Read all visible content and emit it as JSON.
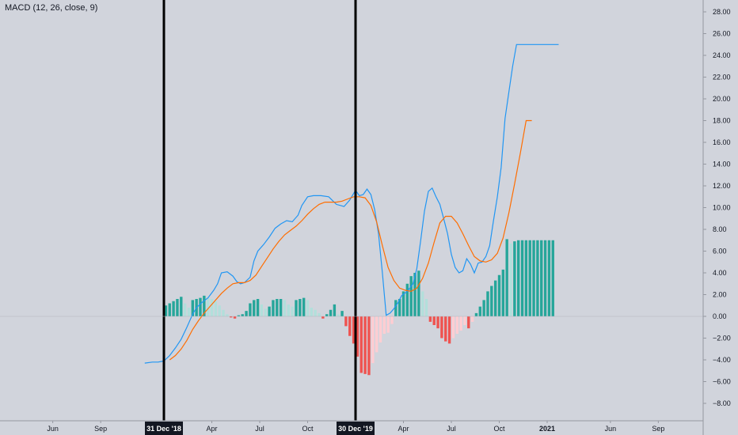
{
  "indicator": {
    "label": "MACD (12, 26, close, 9)"
  },
  "chart_data": {
    "type": "line",
    "title": "",
    "ylim": [
      -9.4,
      28.8
    ],
    "y_ticks": [
      28,
      26,
      24,
      22,
      20,
      18,
      16,
      14,
      12,
      10,
      8,
      6,
      4,
      2,
      0,
      -2,
      -4,
      -6,
      -8
    ],
    "y_tick_labels": [
      "28.00",
      "26.00",
      "24.00",
      "22.00",
      "20.00",
      "18.00",
      "16.00",
      "14.00",
      "12.00",
      "10.00",
      "8.00",
      "6.00",
      "4.00",
      "2.00",
      "0.00",
      "−2.00",
      "−4.00",
      "−6.00",
      "−8.00"
    ],
    "x_ticks": [
      {
        "label": "Jun",
        "t": -0.58
      },
      {
        "label": "Sep",
        "t": -0.33
      },
      {
        "label": "Apr",
        "t": 0.25
      },
      {
        "label": "Jul",
        "t": 0.5
      },
      {
        "label": "Oct",
        "t": 0.75
      },
      {
        "label": "Apr",
        "t": 1.25
      },
      {
        "label": "Jul",
        "t": 1.5
      },
      {
        "label": "Oct",
        "t": 1.75
      },
      {
        "label": "2021",
        "t": 2.0
      },
      {
        "label": "Jun",
        "t": 2.33
      },
      {
        "label": "Sep",
        "t": 2.58
      }
    ],
    "x_markers": [
      {
        "label": "31 Dec '18",
        "t": 0.0
      },
      {
        "label": "30 Dec '19",
        "t": 1.0
      }
    ],
    "grid": false,
    "colors": {
      "macd": "#2196f3",
      "signal": "#ff6d00",
      "hist_pos_rising": "#26a69a",
      "hist_pos_falling": "#b2dfdb",
      "hist_neg_falling": "#ef5350",
      "hist_neg_rising": "#ffcdd2",
      "marker": "#000000"
    },
    "series": [
      {
        "key": "macd",
        "x": [
          -0.1,
          -0.06,
          -0.03,
          0.0,
          0.03,
          0.06,
          0.09,
          0.12,
          0.15,
          0.17,
          0.2,
          0.23,
          0.26,
          0.28,
          0.3,
          0.33,
          0.36,
          0.38,
          0.4,
          0.42,
          0.45,
          0.47,
          0.49,
          0.52,
          0.55,
          0.58,
          0.61,
          0.64,
          0.67,
          0.7,
          0.72,
          0.75,
          0.78,
          0.82,
          0.86,
          0.9,
          0.94,
          0.97,
          1.0,
          1.02,
          1.04,
          1.06,
          1.08,
          1.1,
          1.12,
          1.14,
          1.16,
          1.18,
          1.2,
          1.22,
          1.24,
          1.27,
          1.3,
          1.32,
          1.34,
          1.36,
          1.38,
          1.4,
          1.42,
          1.44,
          1.46,
          1.48,
          1.5,
          1.52,
          1.54,
          1.56,
          1.58,
          1.6,
          1.62,
          1.64,
          1.66,
          1.68,
          1.7,
          1.72,
          1.74,
          1.76,
          1.78,
          1.8,
          1.82,
          1.84,
          1.86,
          1.88,
          1.9,
          1.93,
          1.96,
          1.98,
          2.0,
          2.02,
          2.04,
          2.06
        ],
        "values": [
          -4.3,
          -4.2,
          -4.2,
          -4.1,
          -3.6,
          -2.9,
          -2.1,
          -1.0,
          0.2,
          0.8,
          1.3,
          1.7,
          2.4,
          3.0,
          4.0,
          4.1,
          3.7,
          3.2,
          3.0,
          3.1,
          3.6,
          5.1,
          6.0,
          6.6,
          7.3,
          8.1,
          8.5,
          8.8,
          8.7,
          9.3,
          10.2,
          11.0,
          11.1,
          11.1,
          11.0,
          10.3,
          10.1,
          10.7,
          11.6,
          11.1,
          11.2,
          11.7,
          11.2,
          9.8,
          7.6,
          4.0,
          0.1,
          0.3,
          0.7,
          1.2,
          1.9,
          2.3,
          3.0,
          4.4,
          7.0,
          9.7,
          11.5,
          11.8,
          11.0,
          10.3,
          9.0,
          7.6,
          5.7,
          4.5,
          4.0,
          4.2,
          5.3,
          4.8,
          4.0,
          4.9,
          5.0,
          5.5,
          6.5,
          8.8,
          11.0,
          13.7,
          18.2,
          20.6,
          23.0,
          25.0,
          25.0,
          25.0,
          25.0,
          25.0,
          25.0,
          25.0,
          25.0,
          25.0,
          25.0,
          25.0
        ]
      },
      {
        "key": "signal",
        "x": [
          0.03,
          0.06,
          0.09,
          0.12,
          0.15,
          0.18,
          0.21,
          0.24,
          0.27,
          0.3,
          0.33,
          0.36,
          0.39,
          0.42,
          0.45,
          0.48,
          0.51,
          0.54,
          0.57,
          0.6,
          0.63,
          0.66,
          0.69,
          0.72,
          0.75,
          0.78,
          0.81,
          0.84,
          0.87,
          0.9,
          0.93,
          0.96,
          0.99,
          1.02,
          1.05,
          1.08,
          1.11,
          1.14,
          1.17,
          1.2,
          1.23,
          1.26,
          1.29,
          1.32,
          1.35,
          1.38,
          1.41,
          1.44,
          1.47,
          1.5,
          1.53,
          1.56,
          1.59,
          1.62,
          1.65,
          1.68,
          1.71,
          1.74,
          1.77,
          1.8,
          1.83,
          1.86,
          1.89,
          1.92
        ],
        "values": [
          -4.0,
          -3.6,
          -3.0,
          -2.2,
          -1.2,
          -0.4,
          0.3,
          0.9,
          1.5,
          2.1,
          2.6,
          3.0,
          3.1,
          3.1,
          3.3,
          3.8,
          4.6,
          5.4,
          6.2,
          6.9,
          7.5,
          7.9,
          8.3,
          8.8,
          9.4,
          9.9,
          10.3,
          10.5,
          10.5,
          10.5,
          10.6,
          10.8,
          11.0,
          11.0,
          10.9,
          10.2,
          8.7,
          6.5,
          4.5,
          3.3,
          2.6,
          2.4,
          2.3,
          2.6,
          3.5,
          4.9,
          6.8,
          8.6,
          9.2,
          9.2,
          8.6,
          7.6,
          6.5,
          5.5,
          5.1,
          5.0,
          5.2,
          5.8,
          7.2,
          9.5,
          12.2,
          15.0,
          18.0,
          18.0
        ]
      }
    ],
    "histogram": {
      "x": [
        0.01,
        0.03,
        0.05,
        0.07,
        0.09,
        0.11,
        0.13,
        0.15,
        0.17,
        0.19,
        0.21,
        0.23,
        0.25,
        0.27,
        0.29,
        0.31,
        0.33,
        0.35,
        0.37,
        0.39,
        0.41,
        0.43,
        0.45,
        0.47,
        0.49,
        0.51,
        0.53,
        0.55,
        0.57,
        0.59,
        0.61,
        0.63,
        0.65,
        0.67,
        0.69,
        0.71,
        0.73,
        0.75,
        0.77,
        0.79,
        0.81,
        0.83,
        0.85,
        0.87,
        0.89,
        0.91,
        0.93,
        0.95,
        0.97,
        0.99,
        1.01,
        1.03,
        1.05,
        1.07,
        1.09,
        1.11,
        1.13,
        1.15,
        1.17,
        1.19,
        1.21,
        1.23,
        1.25,
        1.27,
        1.29,
        1.31,
        1.33,
        1.35,
        1.37,
        1.39,
        1.41,
        1.43,
        1.45,
        1.47,
        1.49,
        1.51,
        1.53,
        1.55,
        1.57,
        1.59,
        1.61,
        1.63,
        1.65,
        1.67,
        1.69,
        1.71,
        1.73,
        1.75,
        1.77,
        1.79,
        1.81,
        1.83,
        1.85,
        1.87,
        1.89,
        1.91,
        1.93,
        1.95,
        1.97,
        1.99,
        2.01,
        2.03
      ],
      "values": [
        1.0,
        1.2,
        1.4,
        1.6,
        1.8,
        1.2,
        0.8,
        1.5,
        1.6,
        1.7,
        1.9,
        1.7,
        1.6,
        1.4,
        1.0,
        0.6,
        0.2,
        -0.1,
        -0.2,
        0.1,
        0.2,
        0.5,
        1.2,
        1.5,
        1.6,
        1.1,
        0.7,
        0.9,
        1.5,
        1.6,
        1.6,
        1.5,
        1.1,
        0.9,
        1.5,
        1.6,
        1.7,
        1.5,
        0.8,
        0.6,
        0.3,
        -0.2,
        0.2,
        0.6,
        1.1,
        0.2,
        0.5,
        -0.9,
        -1.8,
        -2.5,
        -3.7,
        -5.2,
        -5.3,
        -5.4,
        -4.3,
        -3.3,
        -2.4,
        -1.6,
        -1.5,
        -0.7,
        1.5,
        1.6,
        2.3,
        3.0,
        3.7,
        4.0,
        4.2,
        2.3,
        1.6,
        -0.5,
        -0.8,
        -1.1,
        -2.0,
        -2.3,
        -2.5,
        -2.0,
        -1.6,
        -1.3,
        -0.8,
        -1.1,
        -0.5,
        0.3,
        0.9,
        1.5,
        2.3,
        2.8,
        3.3,
        3.8,
        4.3,
        7.1,
        6.7,
        6.9,
        7.0,
        7.0,
        7.0,
        7.0,
        7.0,
        7.0,
        7.0,
        7.0,
        7.0,
        7.0
      ],
      "x_cut": 2.04
    }
  }
}
